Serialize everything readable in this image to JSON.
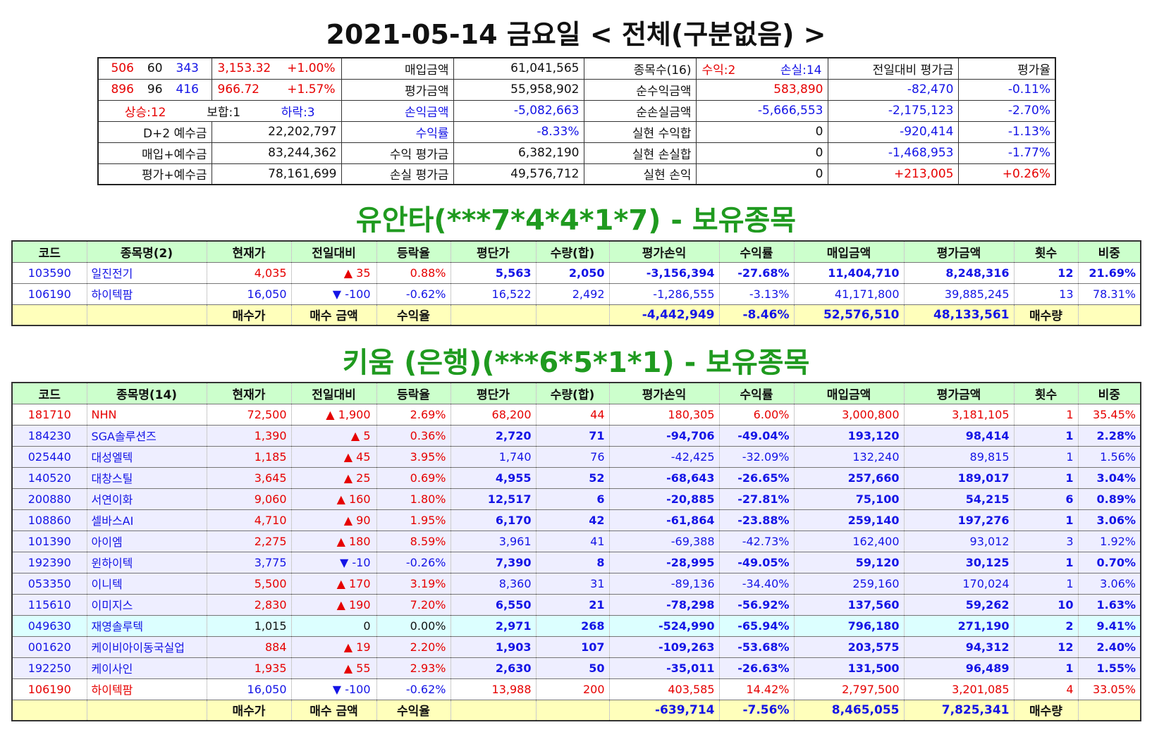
{
  "header": {
    "title": "2021-05-14 금요일 < 전체(구분없음) >"
  },
  "summary": {
    "rows": [
      [
        [
          {
            "text": "506",
            "color": "#e60000"
          },
          "60",
          {
            "text": "343",
            "color": "#1414e6"
          }
        ],
        [
          {
            "text": "3,153.32",
            "color": "#e60000"
          },
          {
            "text": "+1.00%",
            "color": "#e60000"
          }
        ],
        "매입금액",
        "61,041,565",
        "종목수(16)",
        [
          {
            "text": "수익:2",
            "color": "#e60000"
          },
          {
            "text": "손실:14",
            "color": "#1414e6"
          }
        ],
        "전일대비 평가금",
        "평가율"
      ],
      [
        [
          {
            "text": "896",
            "color": "#e60000"
          },
          "96",
          {
            "text": "416",
            "color": "#1414e6"
          }
        ],
        [
          {
            "text": "966.72",
            "color": "#e60000"
          },
          {
            "text": "+1.57%",
            "color": "#e60000"
          }
        ],
        "평가금액",
        "55,958,902",
        "순수익금액",
        {
          "text": "583,890",
          "color": "#e60000"
        },
        {
          "text": "-82,470",
          "color": "#1414e6"
        },
        {
          "text": "-0.11%",
          "color": "#1414e6"
        }
      ],
      [
        [
          {
            "text": "상승:12",
            "color": "#e60000"
          },
          "보합:1",
          {
            "text": "하락:3",
            "color": "#1414e6"
          }
        ],
        {
          "text": "손익금액",
          "color": "#1414e6"
        },
        {
          "text": "-5,082,663",
          "color": "#1414e6"
        },
        "순손실금액",
        {
          "text": "-5,666,553",
          "color": "#1414e6"
        },
        {
          "text": "-2,175,123",
          "color": "#1414e6"
        },
        {
          "text": "-2.70%",
          "color": "#1414e6"
        }
      ],
      [
        "D+2 예수금",
        "22,202,797",
        {
          "text": "수익률",
          "color": "#1414e6"
        },
        {
          "text": "-8.33%",
          "color": "#1414e6"
        },
        "실현 수익합",
        "0",
        {
          "text": "-920,414",
          "color": "#1414e6"
        },
        {
          "text": "-1.13%",
          "color": "#1414e6"
        }
      ],
      [
        "매입+예수금",
        "83,244,362",
        "수익 평가금",
        "6,382,190",
        "실현 손실합",
        "0",
        {
          "text": "-1,468,953",
          "color": "#1414e6"
        },
        {
          "text": "-1.77%",
          "color": "#1414e6"
        }
      ],
      [
        "평가+예수금",
        "78,161,699",
        "손실 평가금",
        "49,576,712",
        "실현 손익",
        "0",
        {
          "text": "+213,005",
          "color": "#e60000"
        },
        {
          "text": "+0.26%",
          "color": "#e60000"
        }
      ]
    ]
  },
  "holdings": [
    {
      "title": "유안타(***7*4*4*1*7) - 보유종목",
      "header": [
        "코드",
        "종목명(2)",
        "현재가",
        "전일대비",
        "등락율",
        "평단가",
        "수량(합)",
        "평가손익",
        "수익률",
        "매입금액",
        "평가금액",
        "횟수",
        "비중"
      ],
      "rows": [
        {
          "cells": [
            "103590",
            "일진전기",
            "4,035",
            "▲ 35",
            "0.88%",
            "5,563",
            "2,050",
            "-3,156,394",
            "-27.68%",
            "11,404,710",
            "8,248,316",
            "12",
            "21.69%"
          ],
          "color": "#1414e6",
          "bold": true,
          "bg": "#ffffff"
        },
        {
          "cells": [
            "106190",
            "하이텍팜",
            "16,050",
            "▼ -100",
            "-0.62%",
            "16,522",
            "2,492",
            "-1,286,555",
            "-3.13%",
            "41,171,800",
            "39,885,245",
            "13",
            "78.31%"
          ],
          "color": "#1414e6",
          "bold": false,
          "bg": "#ffffff"
        }
      ],
      "footer": [
        null,
        null,
        "매수가",
        "매수 금액",
        "수익율",
        null,
        null,
        "-4,442,949",
        "-8.46%",
        "52,576,510",
        "48,133,561",
        "매수량",
        null
      ]
    },
    {
      "title": "키움 (은행)(***6*5*1*1) - 보유종목",
      "header": [
        "코드",
        "종목명(14)",
        "현재가",
        "전일대비",
        "등락율",
        "평단가",
        "수량(합)",
        "평가손익",
        "수익률",
        "매입금액",
        "평가금액",
        "횟수",
        "비중"
      ],
      "rows": [
        {
          "cells": [
            "181710",
            "NHN",
            "72,500",
            "▲ 1,900",
            "2.69%",
            "68,200",
            "44",
            "180,305",
            "6.00%",
            "3,000,800",
            "3,181,105",
            "1",
            "35.45%"
          ],
          "color": "#e60000",
          "bold": false,
          "bg": "#ffffff"
        },
        {
          "cells": [
            "184230",
            "SGA솔루션즈",
            "1,390",
            "▲ 5",
            "0.36%",
            "2,720",
            "71",
            "-94,706",
            "-49.04%",
            "193,120",
            "98,414",
            "1",
            "2.28%"
          ],
          "color": "#1414e6",
          "bold": true,
          "bg": "#eeeeff"
        },
        {
          "cells": [
            "025440",
            "대성엘텍",
            "1,185",
            "▲ 45",
            "3.95%",
            "1,740",
            "76",
            "-42,425",
            "-32.09%",
            "132,240",
            "89,815",
            "1",
            "1.56%"
          ],
          "color": "#1414e6",
          "bold": false,
          "bg": "#eeeeff"
        },
        {
          "cells": [
            "140520",
            "대창스틸",
            "3,645",
            "▲ 25",
            "0.69%",
            "4,955",
            "52",
            "-68,643",
            "-26.65%",
            "257,660",
            "189,017",
            "1",
            "3.04%"
          ],
          "color": "#1414e6",
          "bold": true,
          "bg": "#eeeeff"
        },
        {
          "cells": [
            "200880",
            "서연이화",
            "9,060",
            "▲ 160",
            "1.80%",
            "12,517",
            "6",
            "-20,885",
            "-27.81%",
            "75,100",
            "54,215",
            "6",
            "0.89%"
          ],
          "color": "#1414e6",
          "bold": true,
          "bg": "#eeeeff"
        },
        {
          "cells": [
            "108860",
            "셀바스AI",
            "4,710",
            "▲ 90",
            "1.95%",
            "6,170",
            "42",
            "-61,864",
            "-23.88%",
            "259,140",
            "197,276",
            "1",
            "3.06%"
          ],
          "color": "#1414e6",
          "bold": true,
          "bg": "#eeeeff"
        },
        {
          "cells": [
            "101390",
            "아이엠",
            "2,275",
            "▲ 180",
            "8.59%",
            "3,961",
            "41",
            "-69,388",
            "-42.73%",
            "162,400",
            "93,012",
            "3",
            "1.92%"
          ],
          "color": "#1414e6",
          "bold": false,
          "bg": "#eeeeff"
        },
        {
          "cells": [
            "192390",
            "윈하이텍",
            "3,775",
            "▼ -10",
            "-0.26%",
            "7,390",
            "8",
            "-28,995",
            "-49.05%",
            "59,120",
            "30,125",
            "1",
            "0.70%"
          ],
          "color": "#1414e6",
          "bold": true,
          "bg": "#eeeeff"
        },
        {
          "cells": [
            "053350",
            "이니텍",
            "5,500",
            "▲ 170",
            "3.19%",
            "8,360",
            "31",
            "-89,136",
            "-34.40%",
            "259,160",
            "170,024",
            "1",
            "3.06%"
          ],
          "color": "#1414e6",
          "bold": false,
          "bg": "#eeeeff"
        },
        {
          "cells": [
            "115610",
            "이미지스",
            "2,830",
            "▲ 190",
            "7.20%",
            "6,550",
            "21",
            "-78,298",
            "-56.92%",
            "137,560",
            "59,262",
            "10",
            "1.63%"
          ],
          "color": "#1414e6",
          "bold": true,
          "bg": "#eeeeff"
        },
        {
          "cells": [
            "049630",
            "재영솔루텍",
            "1,015",
            "0",
            "0.00%",
            "2,971",
            "268",
            "-524,990",
            "-65.94%",
            "796,180",
            "271,190",
            "2",
            "9.41%"
          ],
          "color": "#1414e6",
          "bold": true,
          "bg": "#dcffff"
        },
        {
          "cells": [
            "001620",
            "케이비아이동국실업",
            "884",
            "▲ 19",
            "2.20%",
            "1,903",
            "107",
            "-109,263",
            "-53.68%",
            "203,575",
            "94,312",
            "12",
            "2.40%"
          ],
          "color": "#1414e6",
          "bold": true,
          "bg": "#eeeeff"
        },
        {
          "cells": [
            "192250",
            "케이사인",
            "1,935",
            "▲ 55",
            "2.93%",
            "2,630",
            "50",
            "-35,011",
            "-26.63%",
            "131,500",
            "96,489",
            "1",
            "1.55%"
          ],
          "color": "#1414e6",
          "bold": true,
          "bg": "#eeeeff"
        },
        {
          "cells": [
            "106190",
            "하이텍팜",
            "16,050",
            "▼ -100",
            "-0.62%",
            "13,988",
            "200",
            "403,585",
            "14.42%",
            "2,797,500",
            "3,201,085",
            "4",
            "33.05%"
          ],
          "color": "#e60000",
          "bold": false,
          "bg": "#ffffff"
        }
      ],
      "footer": [
        null,
        null,
        "매수가",
        "매수 금액",
        "수익율",
        null,
        null,
        "-639,714",
        "-7.56%",
        "8,465,055",
        "7,825,341",
        "매수량",
        null
      ]
    }
  ]
}
